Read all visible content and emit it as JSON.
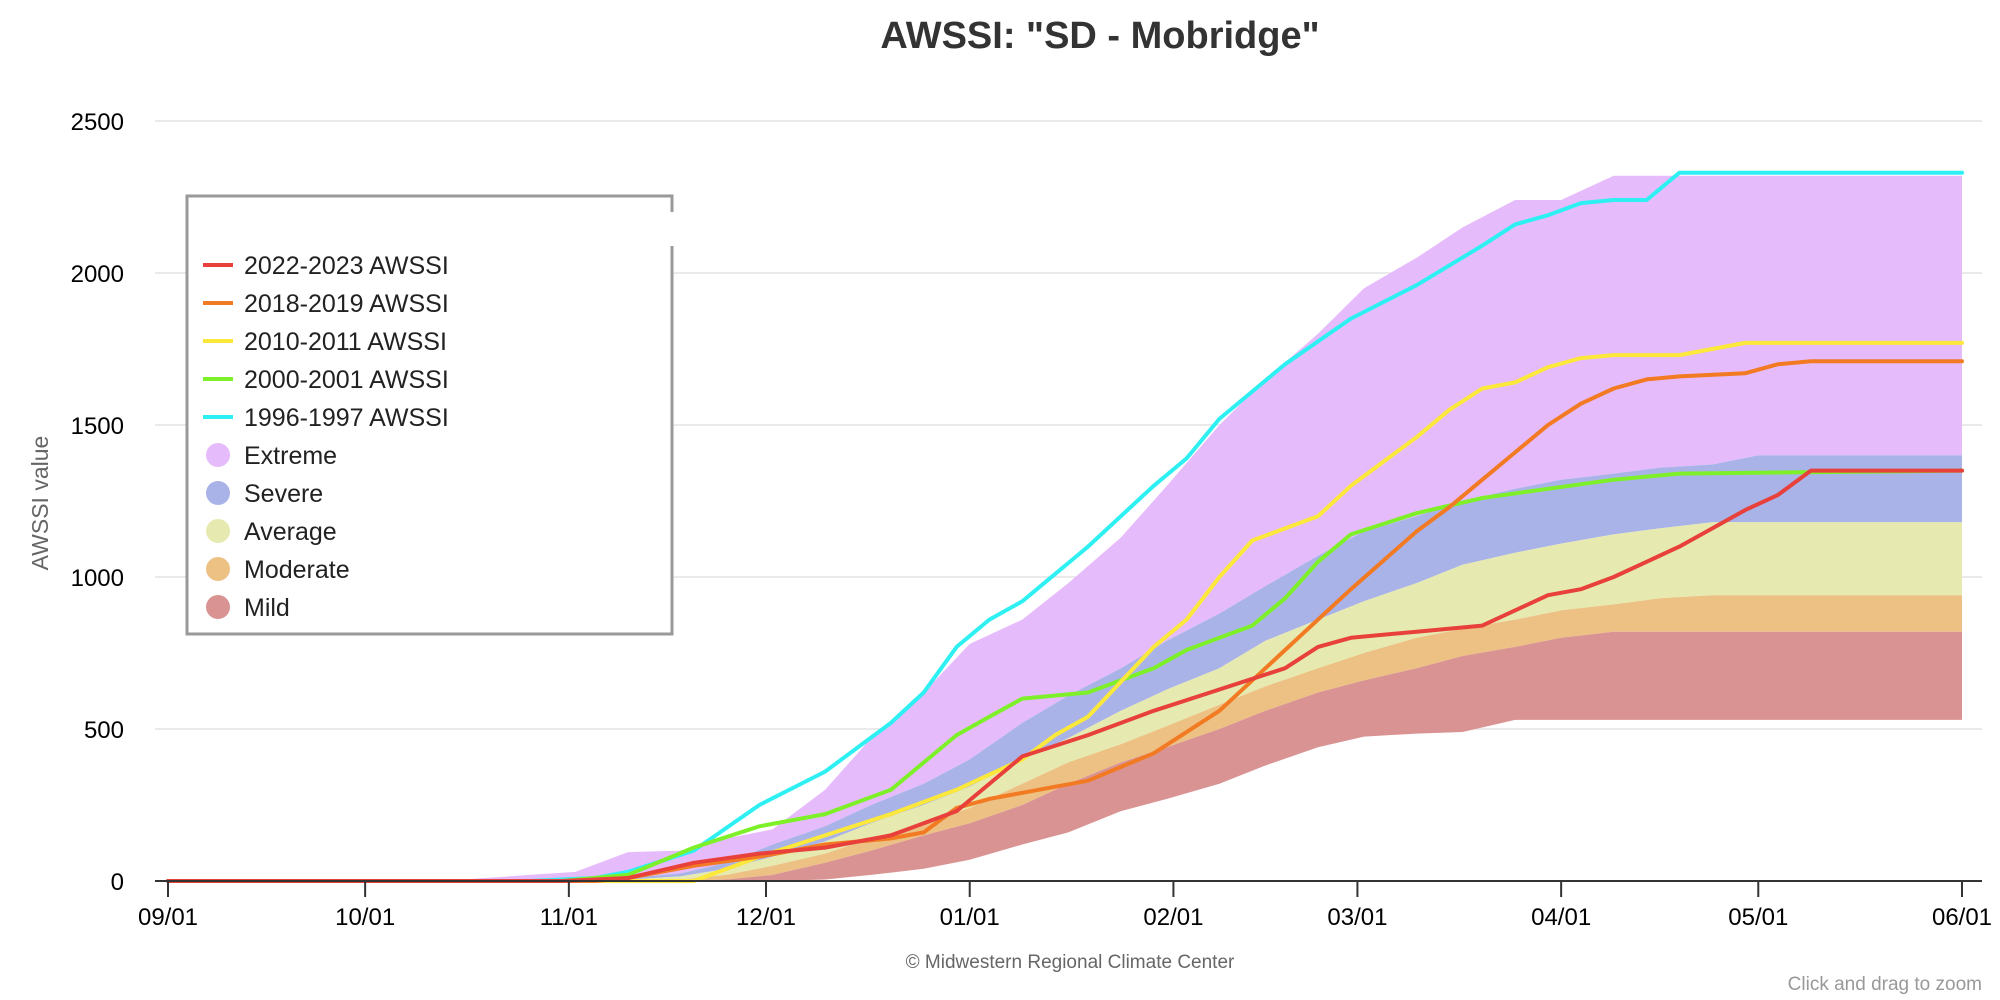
{
  "chart_data": {
    "type": "area",
    "title": "AWSSI: \"SD - Mobridge\"",
    "ylabel": "AWSSI value",
    "xlabel": "",
    "ylim": [
      0,
      2500
    ],
    "yticks": [
      0,
      500,
      1000,
      1500,
      2000,
      2500
    ],
    "x_ticks": [
      "09/01",
      "10/01",
      "11/01",
      "12/01",
      "01/01",
      "02/01",
      "03/01",
      "04/01",
      "05/01",
      "06/01"
    ],
    "grid": true,
    "legend_position": "top-left",
    "credit": "© Midwestern Regional Climate Center",
    "zoom_hint": "Click and drag to zoom",
    "bands": [
      {
        "name": "Extreme",
        "color": "#e6bbfb",
        "lower_key": "severe",
        "upper_key": "extreme"
      },
      {
        "name": "Severe",
        "color": "#a9b3e8",
        "lower_key": "average",
        "upper_key": "severe"
      },
      {
        "name": "Average",
        "color": "#e6eab0",
        "lower_key": "moderate",
        "upper_key": "average"
      },
      {
        "name": "Moderate",
        "color": "#edc183",
        "lower_key": "mild",
        "upper_key": "moderate"
      },
      {
        "name": "Mild",
        "color": "#d99393",
        "lower_key": "base",
        "upper_key": "mild"
      }
    ],
    "band_bounds": {
      "day": [
        0,
        30,
        45,
        55,
        62,
        70,
        78,
        85,
        92,
        100,
        107,
        115,
        122,
        130,
        137,
        145,
        152,
        160,
        167,
        175,
        182,
        190,
        197,
        205,
        212,
        220,
        227,
        235,
        242,
        250,
        273
      ],
      "base": [
        0,
        0,
        0,
        0,
        0,
        0,
        0,
        0,
        0,
        5,
        20,
        40,
        70,
        120,
        160,
        230,
        270,
        320,
        380,
        440,
        475,
        485,
        490,
        530,
        530,
        530,
        530,
        530,
        530,
        530,
        530
      ],
      "mild": [
        0,
        0,
        0,
        0,
        0,
        0,
        0,
        5,
        20,
        60,
        100,
        150,
        190,
        250,
        320,
        390,
        440,
        500,
        560,
        620,
        660,
        700,
        740,
        770,
        800,
        820,
        820,
        820,
        820,
        820,
        820
      ],
      "moderate": [
        0,
        0,
        0,
        0,
        0,
        0,
        5,
        20,
        50,
        90,
        140,
        190,
        240,
        320,
        390,
        450,
        510,
        580,
        640,
        700,
        750,
        800,
        830,
        860,
        890,
        910,
        930,
        940,
        940,
        940,
        940
      ],
      "average": [
        0,
        0,
        0,
        0,
        0,
        5,
        15,
        40,
        80,
        130,
        190,
        250,
        310,
        400,
        470,
        560,
        630,
        700,
        790,
        860,
        920,
        980,
        1040,
        1080,
        1110,
        1140,
        1160,
        1180,
        1180,
        1180,
        1180
      ],
      "severe": [
        0,
        0,
        0,
        0,
        5,
        10,
        25,
        60,
        120,
        180,
        250,
        320,
        400,
        520,
        610,
        700,
        790,
        880,
        970,
        1070,
        1150,
        1200,
        1250,
        1290,
        1320,
        1340,
        1360,
        1370,
        1400,
        1400,
        1400
      ],
      "extreme": [
        0,
        0,
        5,
        20,
        30,
        95,
        100,
        140,
        170,
        300,
        470,
        620,
        780,
        860,
        980,
        1130,
        1300,
        1500,
        1650,
        1800,
        1950,
        2050,
        2150,
        2240,
        2240,
        2320,
        2320,
        2320,
        2320,
        2320,
        2320
      ]
    },
    "series": [
      {
        "name": "2022-2023 AWSSI",
        "color": "#e8403a",
        "x": [
          0,
          60,
          70,
          80,
          90,
          100,
          110,
          120,
          130,
          140,
          150,
          160,
          170,
          175,
          180,
          190,
          200,
          210,
          215,
          220,
          230,
          235,
          240,
          245,
          250,
          260,
          273
        ],
        "y": [
          0,
          0,
          10,
          60,
          90,
          110,
          150,
          230,
          410,
          480,
          560,
          630,
          700,
          770,
          800,
          820,
          840,
          940,
          960,
          1000,
          1100,
          1160,
          1220,
          1270,
          1350,
          1350,
          1350
        ]
      },
      {
        "name": "2018-2019 AWSSI",
        "color": "#f27a22",
        "x": [
          0,
          65,
          70,
          80,
          90,
          100,
          110,
          115,
          120,
          125,
          130,
          140,
          150,
          160,
          170,
          180,
          190,
          195,
          200,
          205,
          210,
          215,
          220,
          225,
          230,
          240,
          245,
          250,
          273
        ],
        "y": [
          0,
          0,
          10,
          50,
          80,
          120,
          140,
          160,
          240,
          270,
          290,
          330,
          420,
          560,
          760,
          960,
          1150,
          1230,
          1320,
          1410,
          1500,
          1570,
          1620,
          1650,
          1660,
          1670,
          1700,
          1710,
          1710
        ]
      },
      {
        "name": "2010-2011 AWSSI",
        "color": "#fbe83a",
        "x": [
          0,
          80,
          90,
          100,
          110,
          120,
          130,
          135,
          140,
          150,
          155,
          160,
          165,
          170,
          175,
          180,
          185,
          190,
          195,
          200,
          205,
          210,
          215,
          220,
          230,
          240,
          250,
          273
        ],
        "y": [
          0,
          0,
          80,
          150,
          220,
          300,
          400,
          480,
          540,
          770,
          860,
          1000,
          1120,
          1160,
          1200,
          1300,
          1380,
          1460,
          1550,
          1620,
          1640,
          1690,
          1720,
          1730,
          1730,
          1770,
          1770,
          1770
        ]
      },
      {
        "name": "2000-2001 AWSSI",
        "color": "#7ef02a",
        "x": [
          0,
          60,
          70,
          80,
          90,
          100,
          110,
          120,
          125,
          130,
          140,
          150,
          155,
          160,
          165,
          170,
          175,
          180,
          190,
          200,
          210,
          220,
          230,
          273
        ],
        "y": [
          0,
          0,
          20,
          110,
          180,
          220,
          300,
          480,
          540,
          600,
          620,
          700,
          760,
          800,
          840,
          930,
          1050,
          1140,
          1210,
          1260,
          1290,
          1320,
          1340,
          1350
        ]
      },
      {
        "name": "1996-1997 AWSSI",
        "color": "#2ef0f3",
        "x": [
          0,
          55,
          65,
          70,
          80,
          90,
          100,
          110,
          115,
          120,
          125,
          130,
          140,
          150,
          155,
          160,
          170,
          180,
          190,
          200,
          205,
          210,
          215,
          220,
          225,
          230,
          240,
          273
        ],
        "y": [
          0,
          0,
          10,
          30,
          100,
          250,
          360,
          520,
          620,
          770,
          860,
          920,
          1100,
          1300,
          1390,
          1520,
          1700,
          1850,
          1960,
          2090,
          2160,
          2190,
          2230,
          2240,
          2240,
          2330,
          2330,
          2330
        ]
      }
    ],
    "legend_items": [
      {
        "label": "2022-2023 AWSSI",
        "color": "#e8403a",
        "kind": "line"
      },
      {
        "label": "2018-2019 AWSSI",
        "color": "#f27a22",
        "kind": "line"
      },
      {
        "label": "2010-2011 AWSSI",
        "color": "#fbe83a",
        "kind": "line"
      },
      {
        "label": "2000-2001 AWSSI",
        "color": "#7ef02a",
        "kind": "line"
      },
      {
        "label": "1996-1997 AWSSI",
        "color": "#2ef0f3",
        "kind": "line"
      },
      {
        "label": "Extreme",
        "color": "#e6bbfb",
        "kind": "dot"
      },
      {
        "label": "Severe",
        "color": "#a9b3e8",
        "kind": "dot"
      },
      {
        "label": "Average",
        "color": "#e6eab0",
        "kind": "dot"
      },
      {
        "label": "Moderate",
        "color": "#edc183",
        "kind": "dot"
      },
      {
        "label": "Mild",
        "color": "#d99393",
        "kind": "dot"
      }
    ]
  }
}
